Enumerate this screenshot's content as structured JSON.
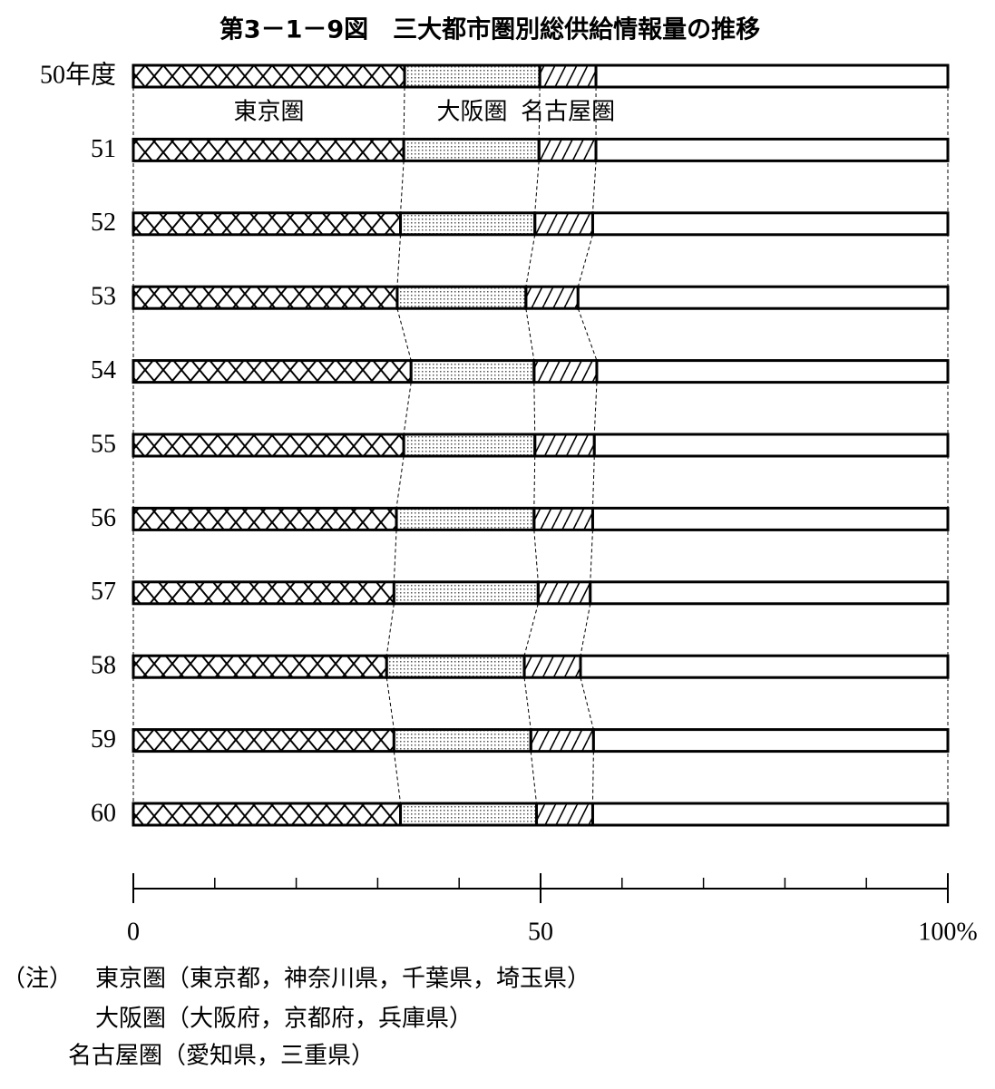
{
  "chart_data": {
    "type": "stacked-bar-horizontal",
    "title": "第3－1－9図　三大都市圏別総供給情報量の推移",
    "categories": [
      "50年度",
      "51",
      "52",
      "53",
      "54",
      "55",
      "56",
      "57",
      "58",
      "59",
      "60"
    ],
    "series": [
      {
        "name": "東京圏",
        "color": "#000000",
        "pattern": "crosshatch",
        "values": [
          33.3,
          33.2,
          32.8,
          32.4,
          34.1,
          33.2,
          32.3,
          32.0,
          31.1,
          32.0,
          32.8
        ]
      },
      {
        "name": "大阪圏",
        "color": "#000000",
        "pattern": "dots",
        "values": [
          16.6,
          16.6,
          16.5,
          15.8,
          15.1,
          16.1,
          16.9,
          17.7,
          16.9,
          16.8,
          16.7
        ]
      },
      {
        "name": "名古屋圏",
        "color": "#000000",
        "pattern": "hatch",
        "values": [
          6.9,
          7.0,
          7.1,
          6.4,
          7.7,
          7.3,
          7.2,
          6.4,
          6.9,
          7.7,
          6.9
        ]
      },
      {
        "color": "#000000",
        "pattern": "none",
        "values": [
          43.2,
          43.2,
          43.6,
          45.4,
          43.1,
          43.4,
          43.6,
          43.9,
          45.1,
          43.5,
          43.6
        ]
      }
    ],
    "xlim": [
      0,
      100
    ],
    "xticks": [
      0,
      50,
      {
        "value": 100,
        "label": "100%"
      }
    ],
    "xminor_ticks": [
      10,
      20,
      30,
      40,
      60,
      70,
      80,
      90
    ],
    "connectors": true,
    "note_label": "（注）",
    "notes": [
      "東京圏（東京都，神奈川県，千葉県，埼玉県）",
      "大阪圏（大阪府，京都府，兵庫県）",
      "名古屋圏（愛知県，三重県）"
    ]
  }
}
